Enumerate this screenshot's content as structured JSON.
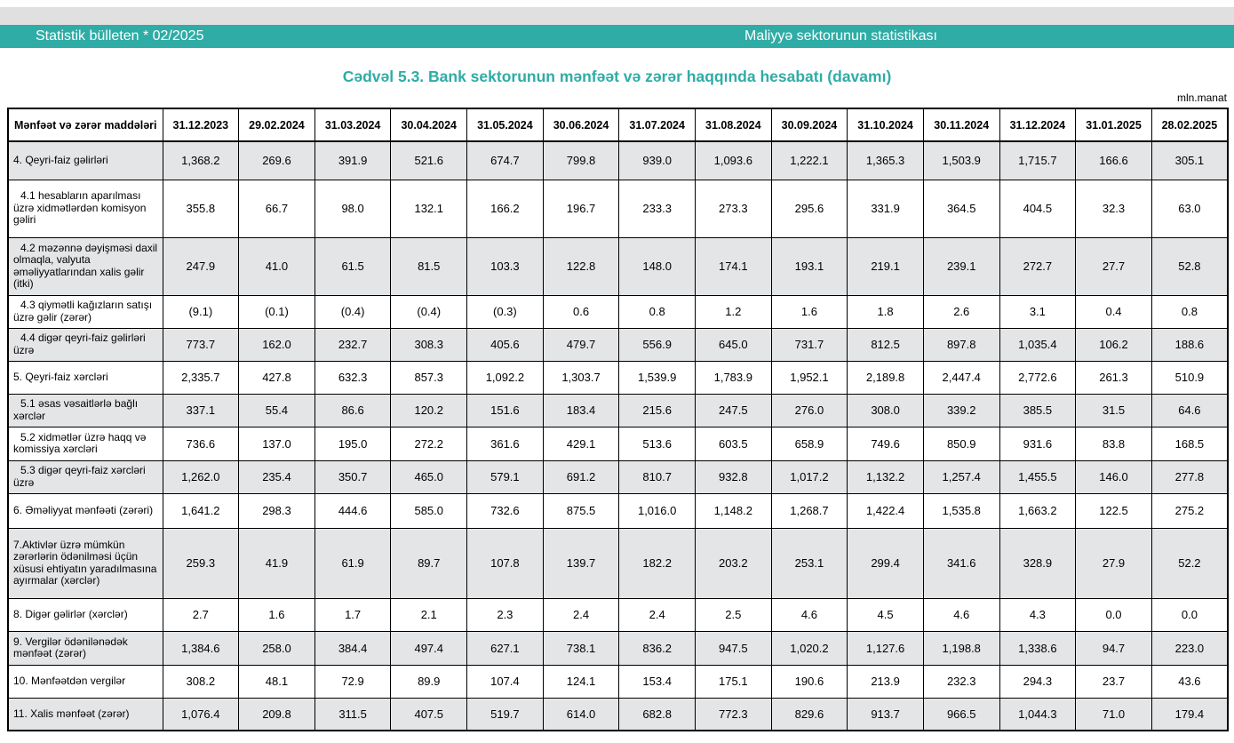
{
  "page": {
    "unit_label": "mln.manat"
  },
  "colors": {
    "accent_teal": "#2faca6",
    "top_strip_gray": "#e0e0e0",
    "row_shade_gray": "#e4e5e7"
  },
  "header_bar": {
    "left": "Statistik bülleten * 02/2025",
    "right": "Maliyyə sektorunun statistikası"
  },
  "title": "Cədvəl 5.3. Bank sektorunun mənfəət və zərər haqqında hesabatı (davamı)",
  "table": {
    "row_header_label": "Mənfəət və zərər maddələri",
    "columns": [
      "31.12.2023",
      "29.02.2024",
      "31.03.2024",
      "30.04.2024",
      "31.05.2024",
      "30.06.2024",
      "31.07.2024",
      "31.08.2024",
      "30.09.2024",
      "31.10.2024",
      "30.11.2024",
      "31.12.2024",
      "31.01.2025",
      "28.02.2025"
    ],
    "rows": [
      {
        "label": "4. Qeyri-faiz gəlirləri",
        "shaded": true,
        "values": [
          "1,368.2",
          "269.6",
          "391.9",
          "521.6",
          "674.7",
          "799.8",
          "939.0",
          "1,093.6",
          "1,222.1",
          "1,365.3",
          "1,503.9",
          "1,715.7",
          "166.6",
          "305.1"
        ]
      },
      {
        "label": "4.1 hesabların aparılması üzrə xidmətlərdən komisyon gəliri",
        "shaded": false,
        "values": [
          "355.8",
          "66.7",
          "98.0",
          "132.1",
          "166.2",
          "196.7",
          "233.3",
          "273.3",
          "295.6",
          "331.9",
          "364.5",
          "404.5",
          "32.3",
          "63.0"
        ]
      },
      {
        "label": "4.2 məzənnə dəyişməsi daxil olmaqla, valyuta əməliyyatlarından xalis gəlir (itki)",
        "shaded": true,
        "values": [
          "247.9",
          "41.0",
          "61.5",
          "81.5",
          "103.3",
          "122.8",
          "148.0",
          "174.1",
          "193.1",
          "219.1",
          "239.1",
          "272.7",
          "27.7",
          "52.8"
        ]
      },
      {
        "label": "4.3 qiymətli kağızların satışı üzrə gəlir (zərər)",
        "shaded": false,
        "values": [
          "(9.1)",
          "(0.1)",
          "(0.4)",
          "(0.4)",
          "(0.3)",
          "0.6",
          "0.8",
          "1.2",
          "1.6",
          "1.8",
          "2.6",
          "3.1",
          "0.4",
          "0.8"
        ]
      },
      {
        "label": "4.4 digər qeyri-faiz gəlirləri üzrə",
        "shaded": true,
        "values": [
          "773.7",
          "162.0",
          "232.7",
          "308.3",
          "405.6",
          "479.7",
          "556.9",
          "645.0",
          "731.7",
          "812.5",
          "897.8",
          "1,035.4",
          "106.2",
          "188.6"
        ]
      },
      {
        "label": "5. Qeyri-faiz xərcləri",
        "shaded": false,
        "values": [
          "2,335.7",
          "427.8",
          "632.3",
          "857.3",
          "1,092.2",
          "1,303.7",
          "1,539.9",
          "1,783.9",
          "1,952.1",
          "2,189.8",
          "2,447.4",
          "2,772.6",
          "261.3",
          "510.9"
        ]
      },
      {
        "label": "5.1 əsas vəsaitlərlə bağlı xərclər",
        "shaded": true,
        "values": [
          "337.1",
          "55.4",
          "86.6",
          "120.2",
          "151.6",
          "183.4",
          "215.6",
          "247.5",
          "276.0",
          "308.0",
          "339.2",
          "385.5",
          "31.5",
          "64.6"
        ]
      },
      {
        "label": "5.2 xidmətlər üzrə haqq və komissiya xərcləri",
        "shaded": false,
        "values": [
          "736.6",
          "137.0",
          "195.0",
          "272.2",
          "361.6",
          "429.1",
          "513.6",
          "603.5",
          "658.9",
          "749.6",
          "850.9",
          "931.6",
          "83.8",
          "168.5"
        ]
      },
      {
        "label": "5.3 digər qeyri-faiz xərcləri üzrə",
        "shaded": true,
        "values": [
          "1,262.0",
          "235.4",
          "350.7",
          "465.0",
          "579.1",
          "691.2",
          "810.7",
          "932.8",
          "1,017.2",
          "1,132.2",
          "1,257.4",
          "1,455.5",
          "146.0",
          "277.8"
        ]
      },
      {
        "label": "6. Əməliyyat mənfəəti (zərəri)",
        "shaded": false,
        "values": [
          "1,641.2",
          "298.3",
          "444.6",
          "585.0",
          "732.6",
          "875.5",
          "1,016.0",
          "1,148.2",
          "1,268.7",
          "1,422.4",
          "1,535.8",
          "1,663.2",
          "122.5",
          "275.2"
        ]
      },
      {
        "label": "7.Aktivlər üzrə mümkün zərərlərin ödənilməsi üçün xüsusi ehtiyatın yaradılmasına ayırmalar (xərclər)",
        "shaded": true,
        "values": [
          "259.3",
          "41.9",
          "61.9",
          "89.7",
          "107.8",
          "139.7",
          "182.2",
          "203.2",
          "253.1",
          "299.4",
          "341.6",
          "328.9",
          "27.9",
          "52.2"
        ]
      },
      {
        "label": "8. Digər gəlirlər (xərclər)",
        "shaded": false,
        "values": [
          "2.7",
          "1.6",
          "1.7",
          "2.1",
          "2.3",
          "2.4",
          "2.4",
          "2.5",
          "4.6",
          "4.5",
          "4.6",
          "4.3",
          "0.0",
          "0.0"
        ]
      },
      {
        "label": "9. Vergilər ödənilənədək mənfəət (zərər)",
        "shaded": true,
        "values": [
          "1,384.6",
          "258.0",
          "384.4",
          "497.4",
          "627.1",
          "738.1",
          "836.2",
          "947.5",
          "1,020.2",
          "1,127.6",
          "1,198.8",
          "1,338.6",
          "94.7",
          "223.0"
        ]
      },
      {
        "label": "10. Mənfəətdən vergilər",
        "shaded": false,
        "values": [
          "308.2",
          "48.1",
          "72.9",
          "89.9",
          "107.4",
          "124.1",
          "153.4",
          "175.1",
          "190.6",
          "213.9",
          "232.3",
          "294.3",
          "23.7",
          "43.6"
        ]
      },
      {
        "label": "11. Xalis mənfəət (zərər)",
        "shaded": true,
        "values": [
          "1,076.4",
          "209.8",
          "311.5",
          "407.5",
          "519.7",
          "614.0",
          "682.8",
          "772.3",
          "829.6",
          "913.7",
          "966.5",
          "1,044.3",
          "71.0",
          "179.4"
        ]
      }
    ]
  }
}
